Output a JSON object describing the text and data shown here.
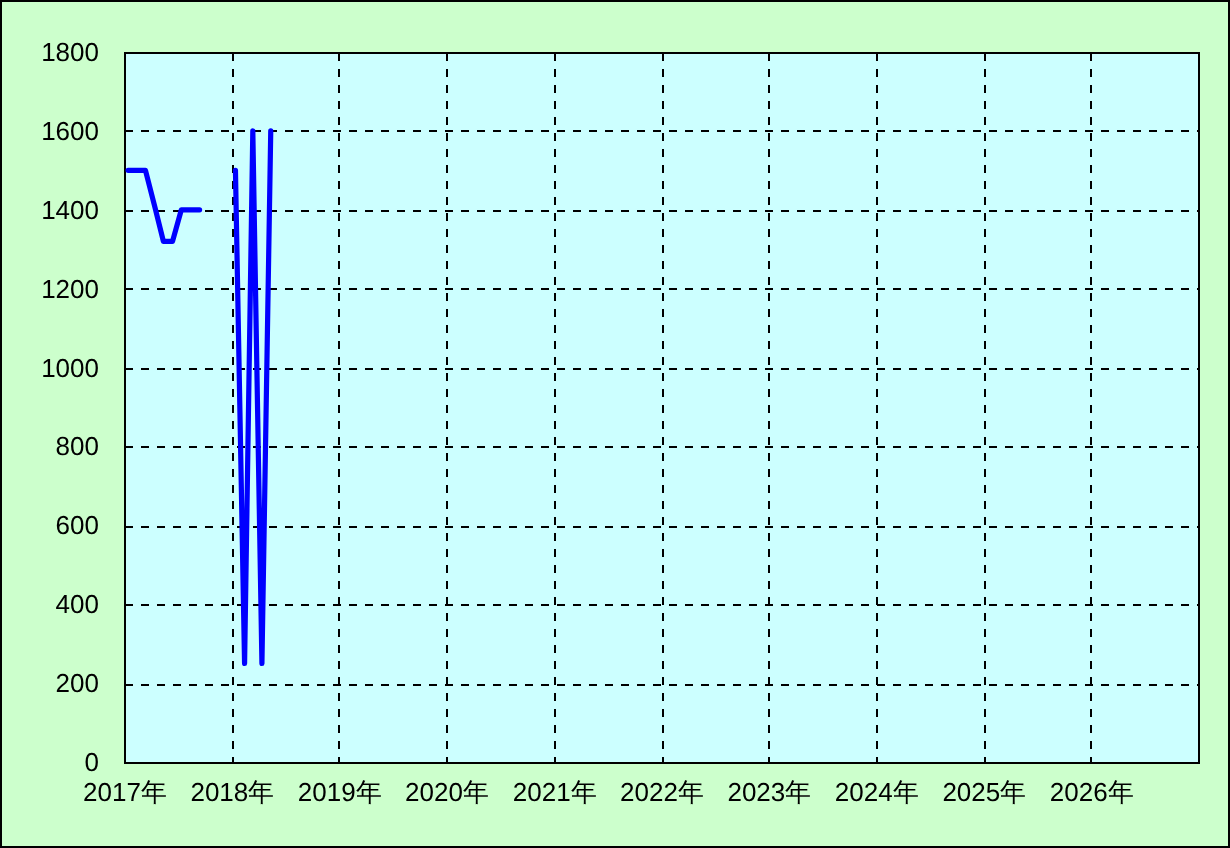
{
  "chart_data": {
    "type": "line",
    "x": [
      "2017-01-15",
      "2017-02-15",
      "2017-03-15",
      "2017-04-15",
      "2017-05-15",
      "2017-06-15",
      "2017-07-15",
      "2017-08-15",
      "2017-09-15",
      "2017-10-15",
      "2017-11-15",
      "2017-12-15",
      "2018-01-15",
      "2018-02-15",
      "2018-03-15",
      "2018-04-15",
      "2018-05-15"
    ],
    "values": [
      1500,
      1500,
      1500,
      1410,
      1320,
      1320,
      1400,
      1400,
      1400,
      null,
      null,
      null,
      1500,
      250,
      1600,
      250,
      1600
    ],
    "color": "#0000ff",
    "line_style": "solid",
    "xlim": [
      "2017",
      "2027"
    ],
    "xticks": [
      {
        "value": "2017",
        "label": "2017年"
      },
      {
        "value": "2018",
        "label": "2018年"
      },
      {
        "value": "2019",
        "label": "2019年"
      },
      {
        "value": "2020",
        "label": "2020年"
      },
      {
        "value": "2021",
        "label": "2021年"
      },
      {
        "value": "2022",
        "label": "2022年"
      },
      {
        "value": "2023",
        "label": "2023年"
      },
      {
        "value": "2024",
        "label": "2024年"
      },
      {
        "value": "2025",
        "label": "2025年"
      },
      {
        "value": "2026",
        "label": "2026年"
      }
    ],
    "ylim": [
      0,
      1800
    ],
    "yticks": [
      0,
      200,
      400,
      600,
      800,
      1000,
      1200,
      1400,
      1600,
      1800
    ],
    "grid": true
  }
}
